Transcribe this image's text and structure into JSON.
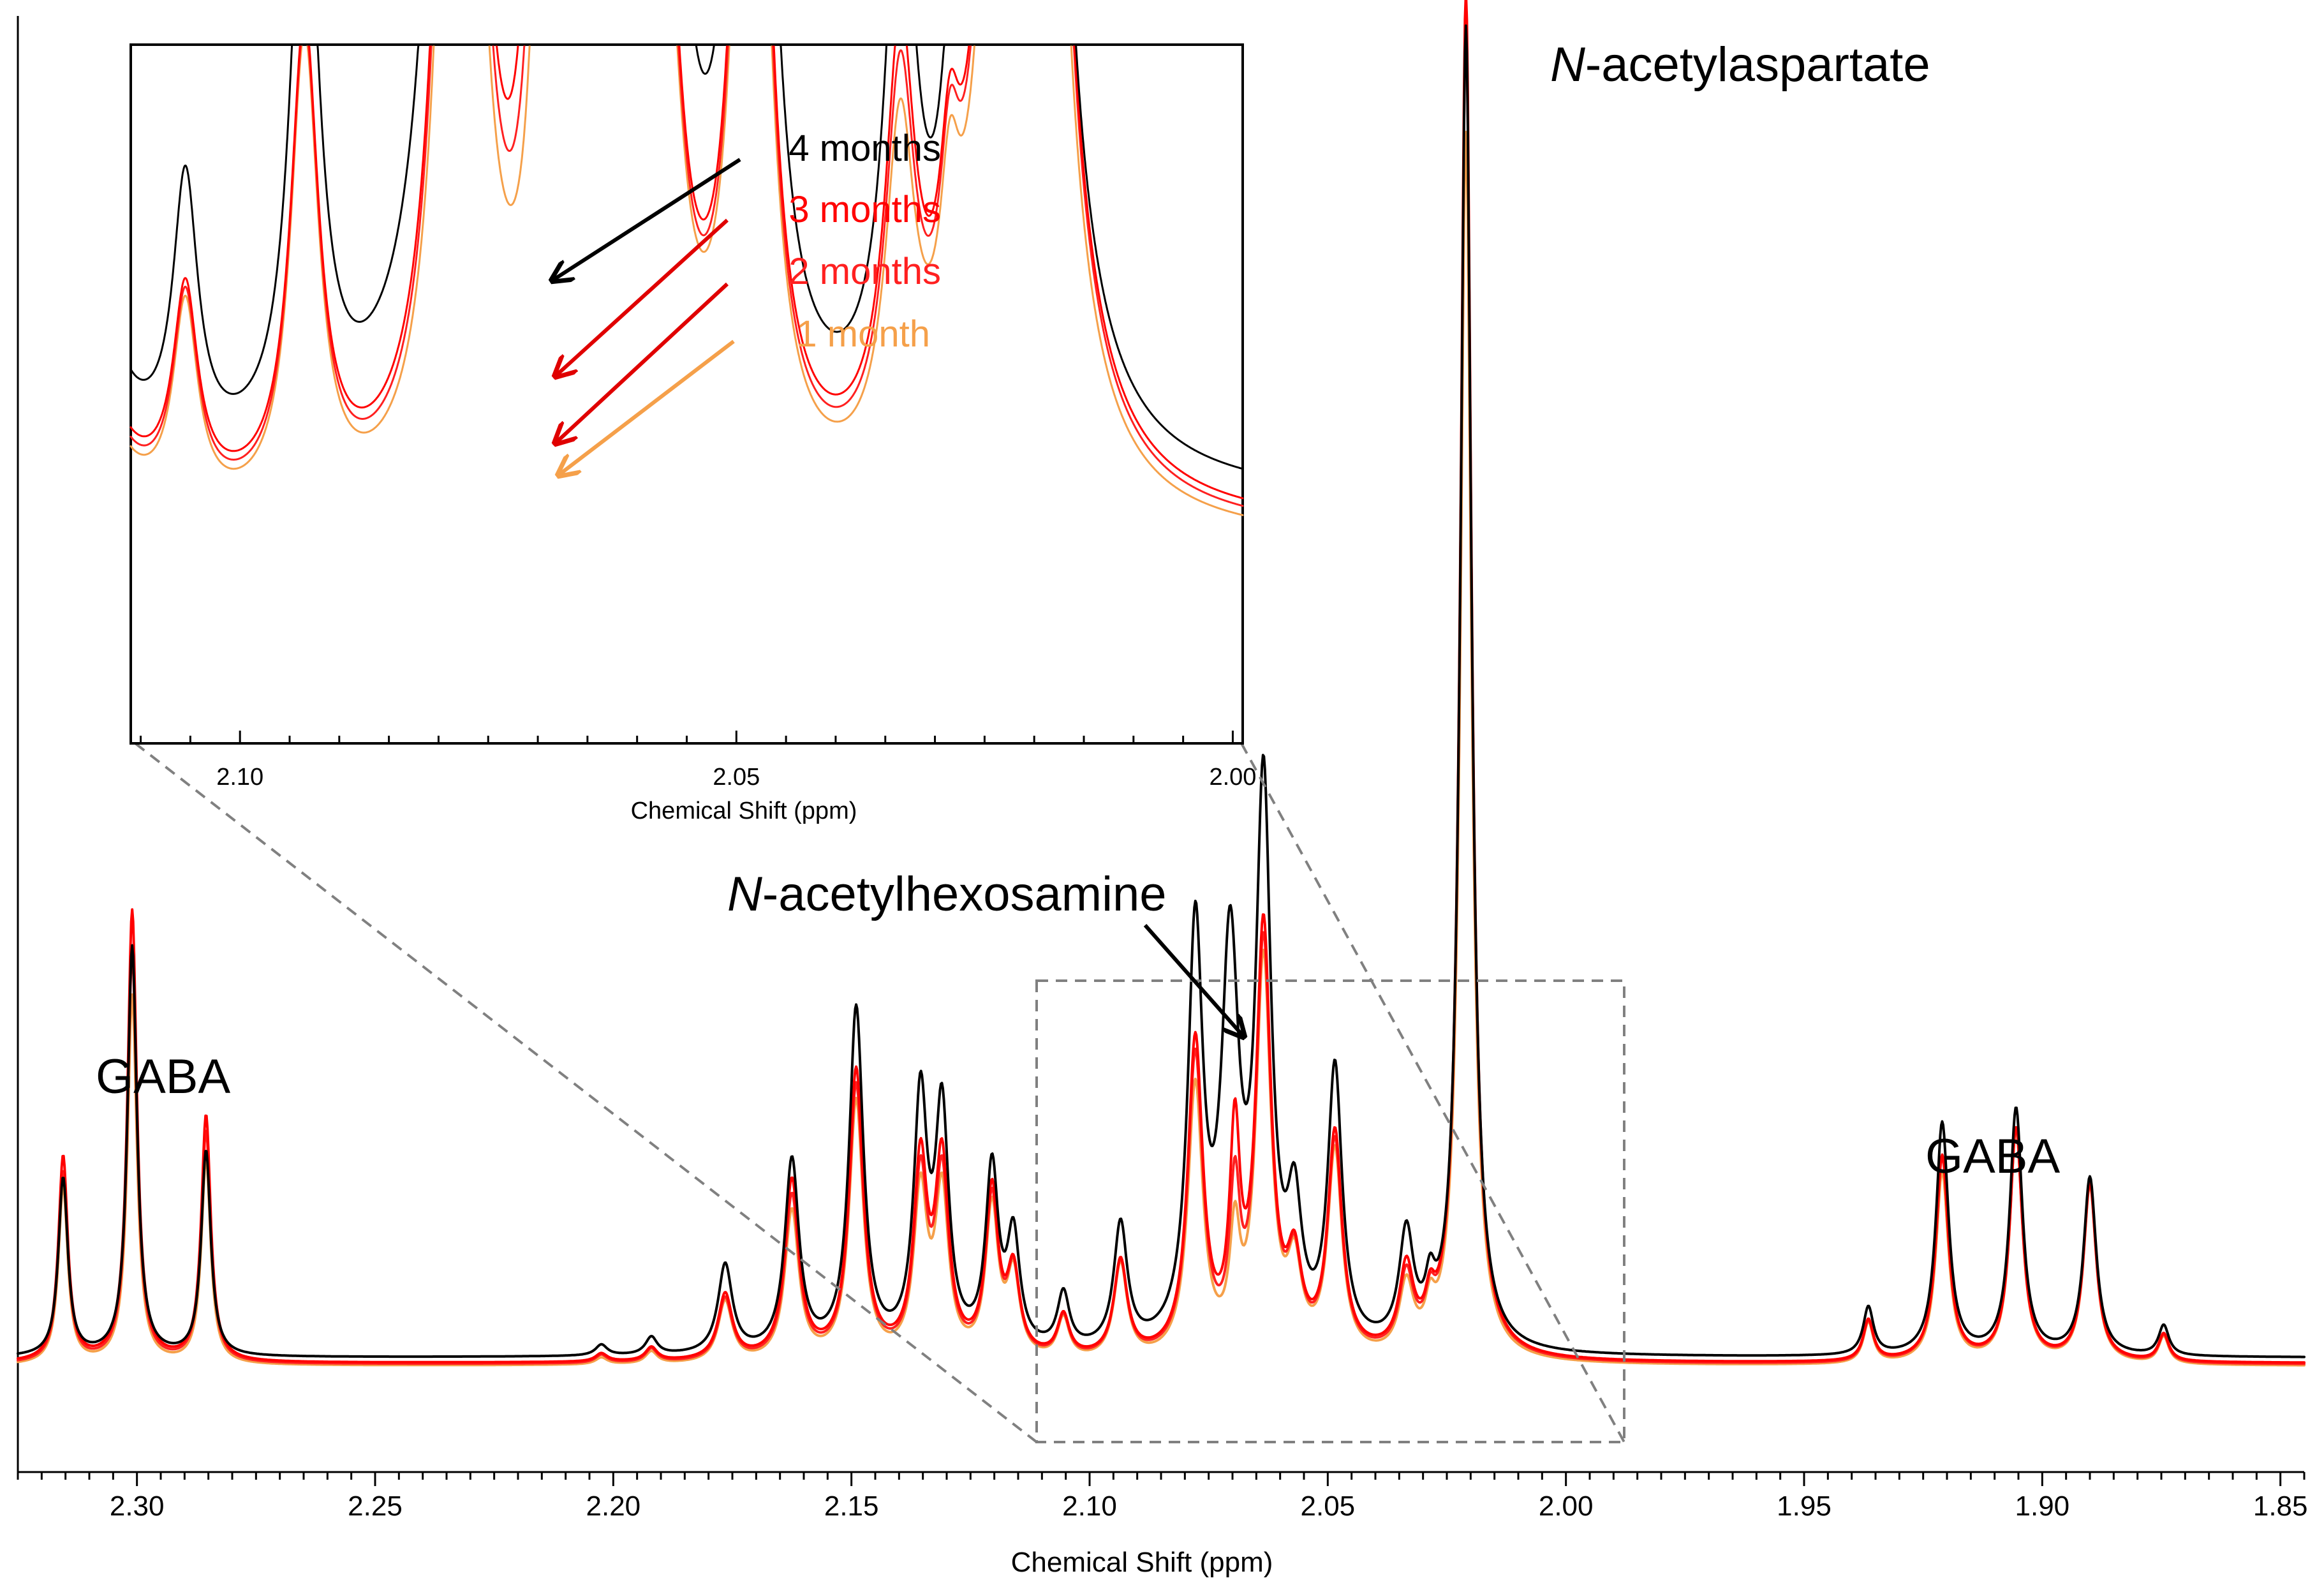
{
  "chart_data": [
    {
      "type": "line",
      "title": "",
      "xlabel": "Chemical Shift (ppm)",
      "ylabel": "",
      "xlim": [
        2.325,
        1.845
      ],
      "x_reversed": true,
      "xticks": [
        2.3,
        2.25,
        2.2,
        2.15,
        2.1,
        2.05,
        2.0,
        1.95,
        1.9,
        1.85
      ],
      "xtick_labels": [
        "2.30",
        "2.25",
        "2.20",
        "2.15",
        "2.10",
        "2.05",
        "2.00",
        "1.95",
        "1.90",
        "1.85"
      ],
      "ylim": [
        0,
        100
      ],
      "series": [
        {
          "name": "4 months",
          "color": "#000000",
          "baseline": 2.2,
          "peaks": [
            [
              2.3155,
              13,
              0.0012
            ],
            [
              2.301,
              30,
              0.0012
            ],
            [
              2.2855,
              15,
              0.0012
            ],
            [
              2.2025,
              0.8,
              0.0015
            ],
            [
              2.192,
              1.3,
              0.0015
            ],
            [
              2.1765,
              6.5,
              0.0018
            ],
            [
              2.1625,
              14,
              0.0018
            ],
            [
              2.149,
              25,
              0.0018
            ],
            [
              2.1355,
              18,
              0.0017
            ],
            [
              2.131,
              17,
              0.0017
            ],
            [
              2.1205,
              13,
              0.0016
            ],
            [
              2.116,
              8,
              0.0016
            ],
            [
              2.1055,
              4,
              0.0015
            ],
            [
              2.0935,
              9,
              0.0017
            ],
            [
              2.0778,
              30,
              0.0019
            ],
            [
              2.0705,
              28,
              0.0022
            ],
            [
              2.0635,
              40,
              0.0019
            ],
            [
              2.057,
              9,
              0.0018
            ],
            [
              2.0485,
              20,
              0.0018
            ],
            [
              2.0335,
              8,
              0.0018
            ],
            [
              2.0285,
              3,
              0.0012
            ],
            [
              2.021,
              97,
              0.0014
            ],
            [
              1.9365,
              3.5,
              0.0013
            ],
            [
              1.921,
              17,
              0.0016
            ],
            [
              1.9055,
              18,
              0.0016
            ],
            [
              1.89,
              13,
              0.0016
            ],
            [
              1.8745,
              2.2,
              0.0013
            ]
          ]
        },
        {
          "name": "3 months",
          "color": "#ff0000",
          "baseline": 1.8,
          "peaks": [
            [
              2.3155,
              15,
              0.0012
            ],
            [
              2.301,
              33,
              0.0012
            ],
            [
              2.2855,
              18,
              0.0012
            ],
            [
              2.2025,
              0.6,
              0.0015
            ],
            [
              2.192,
              1,
              0.0015
            ],
            [
              2.1765,
              4.8,
              0.0018
            ],
            [
              2.1625,
              13,
              0.0018
            ],
            [
              2.149,
              21,
              0.0018
            ],
            [
              2.1355,
              14,
              0.0017
            ],
            [
              2.131,
              14,
              0.0017
            ],
            [
              2.1205,
              12,
              0.0016
            ],
            [
              2.116,
              6,
              0.0016
            ],
            [
              2.1055,
              3,
              0.0015
            ],
            [
              2.0935,
              7,
              0.0017
            ],
            [
              2.0778,
              23,
              0.0019
            ],
            [
              2.0695,
              15,
              0.0013
            ],
            [
              2.0635,
              31,
              0.0019
            ],
            [
              2.057,
              6,
              0.0018
            ],
            [
              2.0485,
              16,
              0.0018
            ],
            [
              2.0335,
              6,
              0.0018
            ],
            [
              2.0285,
              2.5,
              0.0012
            ],
            [
              2.021,
              100,
              0.0014
            ],
            [
              1.9365,
              3,
              0.0013
            ],
            [
              1.921,
              15,
              0.0016
            ],
            [
              1.9055,
              17,
              0.0016
            ],
            [
              1.89,
              13,
              0.0016
            ],
            [
              1.8745,
              2,
              0.0013
            ]
          ]
        },
        {
          "name": "2 months",
          "color": "#ff2020",
          "baseline": 1.7,
          "peaks": [
            [
              2.3155,
              14,
              0.0012
            ],
            [
              2.301,
              30,
              0.0012
            ],
            [
              2.2855,
              17,
              0.0012
            ],
            [
              2.2025,
              0.6,
              0.0015
            ],
            [
              2.192,
              1,
              0.0015
            ],
            [
              2.1765,
              4.6,
              0.0018
            ],
            [
              2.1625,
              12,
              0.0018
            ],
            [
              2.149,
              20,
              0.0018
            ],
            [
              2.1355,
              13,
              0.0017
            ],
            [
              2.131,
              13,
              0.0017
            ],
            [
              2.1205,
              11.5,
              0.0016
            ],
            [
              2.116,
              6,
              0.0016
            ],
            [
              2.1055,
              3,
              0.0015
            ],
            [
              2.0935,
              7,
              0.0017
            ],
            [
              2.0778,
              22,
              0.0019
            ],
            [
              2.0695,
              11,
              0.0013
            ],
            [
              2.0635,
              30,
              0.0019
            ],
            [
              2.057,
              6,
              0.0018
            ],
            [
              2.0485,
              15.5,
              0.0018
            ],
            [
              2.0335,
              5.5,
              0.0018
            ],
            [
              2.0285,
              2.5,
              0.0012
            ],
            [
              2.021,
              98,
              0.0014
            ],
            [
              1.9365,
              3,
              0.0013
            ],
            [
              1.921,
              15,
              0.0016
            ],
            [
              1.9055,
              17,
              0.0016
            ],
            [
              1.89,
              13,
              0.0016
            ],
            [
              1.8745,
              2,
              0.0013
            ]
          ]
        },
        {
          "name": "1 month",
          "color": "#f5a04a",
          "baseline": 1.6,
          "peaks": [
            [
              2.3155,
              13,
              0.0012
            ],
            [
              2.301,
              27,
              0.0012
            ],
            [
              2.2855,
              15,
              0.0012
            ],
            [
              2.2025,
              0.5,
              0.0015
            ],
            [
              2.192,
              0.9,
              0.0015
            ],
            [
              2.1765,
              4.5,
              0.0018
            ],
            [
              2.1625,
              11,
              0.0018
            ],
            [
              2.149,
              19,
              0.0018
            ],
            [
              2.1355,
              12,
              0.0017
            ],
            [
              2.131,
              12,
              0.0017
            ],
            [
              2.1205,
              11,
              0.0016
            ],
            [
              2.116,
              6,
              0.0016
            ],
            [
              2.1055,
              3,
              0.0015
            ],
            [
              2.0935,
              7,
              0.0017
            ],
            [
              2.0778,
              20,
              0.0019
            ],
            [
              2.0695,
              8,
              0.0013
            ],
            [
              2.0635,
              29,
              0.0019
            ],
            [
              2.057,
              6,
              0.0018
            ],
            [
              2.0485,
              15,
              0.0018
            ],
            [
              2.0335,
              5,
              0.0018
            ],
            [
              2.0285,
              2.5,
              0.0012
            ],
            [
              2.021,
              90,
              0.0014
            ],
            [
              1.9365,
              3,
              0.0013
            ],
            [
              1.921,
              14,
              0.0016
            ],
            [
              1.9055,
              17,
              0.0016
            ],
            [
              1.89,
              13,
              0.0016
            ],
            [
              1.8745,
              2,
              0.0013
            ]
          ]
        }
      ],
      "zoom_region_ppm": [
        2.115,
        1.992
      ],
      "annotations": [
        {
          "text": "N-acetylaspartate",
          "italic_prefix": "N"
        },
        {
          "text": "N-acetylhexosamine",
          "italic_prefix": "N"
        },
        {
          "text": "GABA"
        },
        {
          "text": "GABA"
        }
      ]
    },
    {
      "type": "line",
      "title": "",
      "xlabel": "Chemical Shift (ppm)",
      "ylabel": "",
      "xlim": [
        2.111,
        1.999
      ],
      "x_reversed": true,
      "xticks": [
        2.1,
        2.05,
        2.0
      ],
      "xtick_labels": [
        "2.10",
        "2.05",
        "2.00"
      ],
      "ylim": [
        0,
        100
      ],
      "legend": [
        "4 months",
        "3 months",
        "2 months",
        "1 month"
      ],
      "legend_colors": [
        "#000000",
        "#ff0000",
        "#ff2020",
        "#f5a04a"
      ]
    }
  ],
  "labels": {
    "naa_prefix": "N",
    "naa_suffix": "-acetylaspartate",
    "nah_prefix": "N",
    "nah_suffix": "-acetylhexosamine",
    "gaba_left": "GABA",
    "gaba_right": "GABA",
    "main_xlabel": "Chemical Shift (ppm)",
    "inset_xlabel": "Chemical Shift (ppm)",
    "legend_4": "4 months",
    "legend_3": "3 months",
    "legend_2": "2 months",
    "legend_1": "1 month"
  }
}
